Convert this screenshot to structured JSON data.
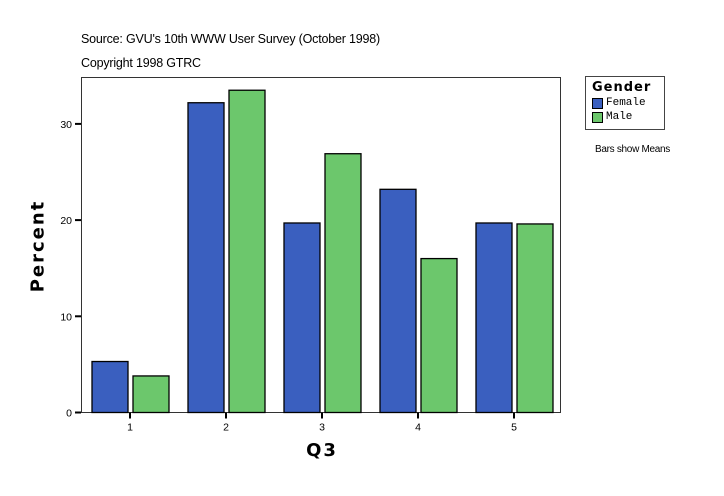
{
  "header": {
    "source": "Source: GVU's 10th WWW User Survey (October 1998)",
    "copyright": "Copyright 1998 GTRC"
  },
  "legend": {
    "title": "Gender",
    "items": [
      {
        "label": "Female",
        "color": "#3a5fbf"
      },
      {
        "label": "Male",
        "color": "#6cc76c"
      }
    ]
  },
  "note": "Bars show Means",
  "chart_data": {
    "type": "bar",
    "title": "Source: GVU's 10th WWW User Survey (October 1998)",
    "subtitle": "Copyright 1998 GTRC",
    "xlabel": "Q3",
    "ylabel": "Percent",
    "categories": [
      "1",
      "2",
      "3",
      "4",
      "5"
    ],
    "series": [
      {
        "name": "Female",
        "color": "#3a5fbf",
        "values": [
          5.3,
          32.2,
          19.7,
          23.2,
          19.7
        ]
      },
      {
        "name": "Male",
        "color": "#6cc76c",
        "values": [
          3.8,
          33.5,
          26.9,
          16.0,
          19.6
        ]
      }
    ],
    "yticks": [
      0,
      10,
      20,
      30
    ],
    "ylim": [
      0,
      34.8
    ],
    "grid": false,
    "legend_position": "right",
    "annotation": "Bars show Means"
  }
}
